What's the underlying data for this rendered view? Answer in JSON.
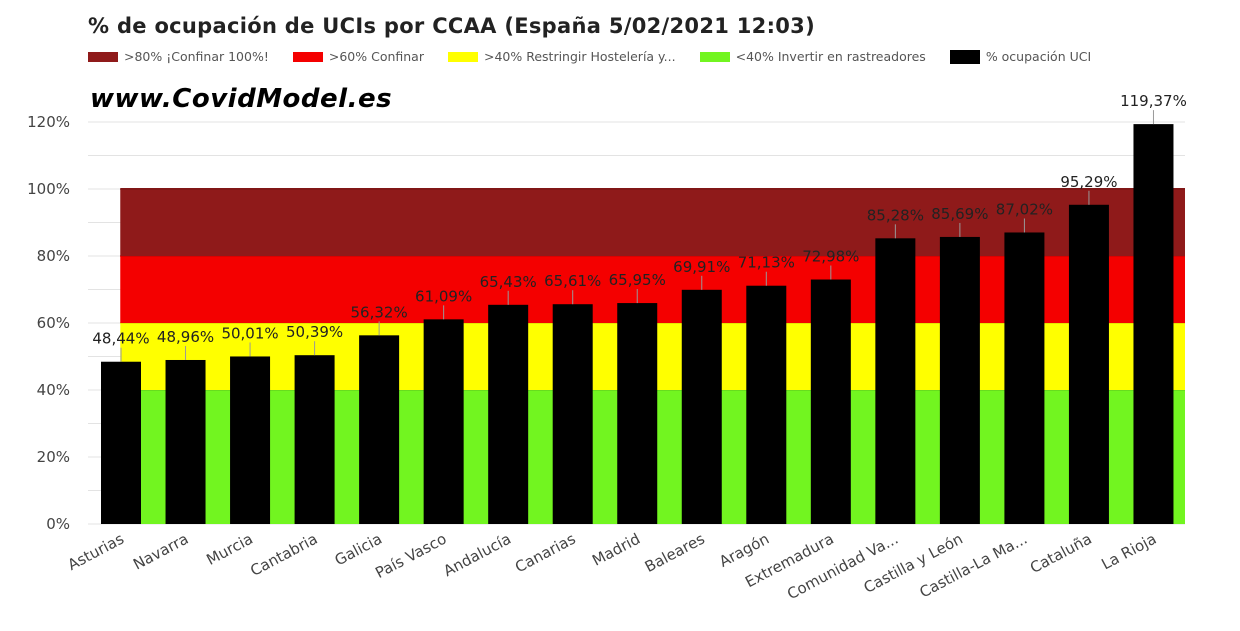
{
  "title": "% de ocupación de UCIs por CCAA (España 5/02/2021 12:03)",
  "watermark": "www.CovidModel.es",
  "legend": [
    {
      "label": ">80% ¡Confinar 100%!",
      "color": "#8f1a1a"
    },
    {
      "label": ">60% Confinar",
      "color": "#f40000"
    },
    {
      "label": ">40% Restringir Hostelería y...",
      "color": "#ffff00"
    },
    {
      "label": "<40% Invertir en rastreadores",
      "color": "#72f520"
    },
    {
      "label": "% ocupación UCI",
      "color": "#000000"
    }
  ],
  "chart_data": {
    "type": "bar",
    "title": "% de ocupación de UCIs por CCAA (España 5/02/2021 12:03)",
    "categories": [
      "Asturias",
      "Navarra",
      "Murcia",
      "Cantabria",
      "Galicia",
      "País Vasco",
      "Andalucía",
      "Canarias",
      "Madrid",
      "Baleares",
      "Aragón",
      "Extremadura",
      "Comunidad Va...",
      "Castilla y León",
      "Castilla-La Ma...",
      "Cataluña",
      "La Rioja"
    ],
    "values": [
      48.44,
      48.96,
      50.01,
      50.39,
      56.32,
      61.09,
      65.43,
      65.61,
      65.95,
      69.91,
      71.13,
      72.98,
      85.28,
      85.69,
      87.02,
      95.29,
      119.37
    ],
    "labels": [
      "48,44%",
      "48,96%",
      "50,01%",
      "50,39%",
      "56,32%",
      "61,09%",
      "65,43%",
      "65,61%",
      "65,95%",
      "69,91%",
      "71,13%",
      "72,98%",
      "85,28%",
      "85,69%",
      "87,02%",
      "95,29%",
      "119,37%"
    ],
    "bands": [
      {
        "from": 0,
        "to": 40,
        "color": "#72f520"
      },
      {
        "from": 40,
        "to": 60,
        "color": "#ffff00"
      },
      {
        "from": 60,
        "to": 80,
        "color": "#f40000"
      },
      {
        "from": 80,
        "to": 100,
        "color": "#8f1a1a"
      }
    ],
    "yticks": [
      "0%",
      "20%",
      "40%",
      "60%",
      "80%",
      "100%",
      "120%"
    ],
    "ytick_values": [
      0,
      20,
      40,
      60,
      80,
      100,
      120
    ],
    "ylim": [
      0,
      120
    ],
    "grid": true,
    "legend_position": "top",
    "bar_color": "#000000"
  }
}
